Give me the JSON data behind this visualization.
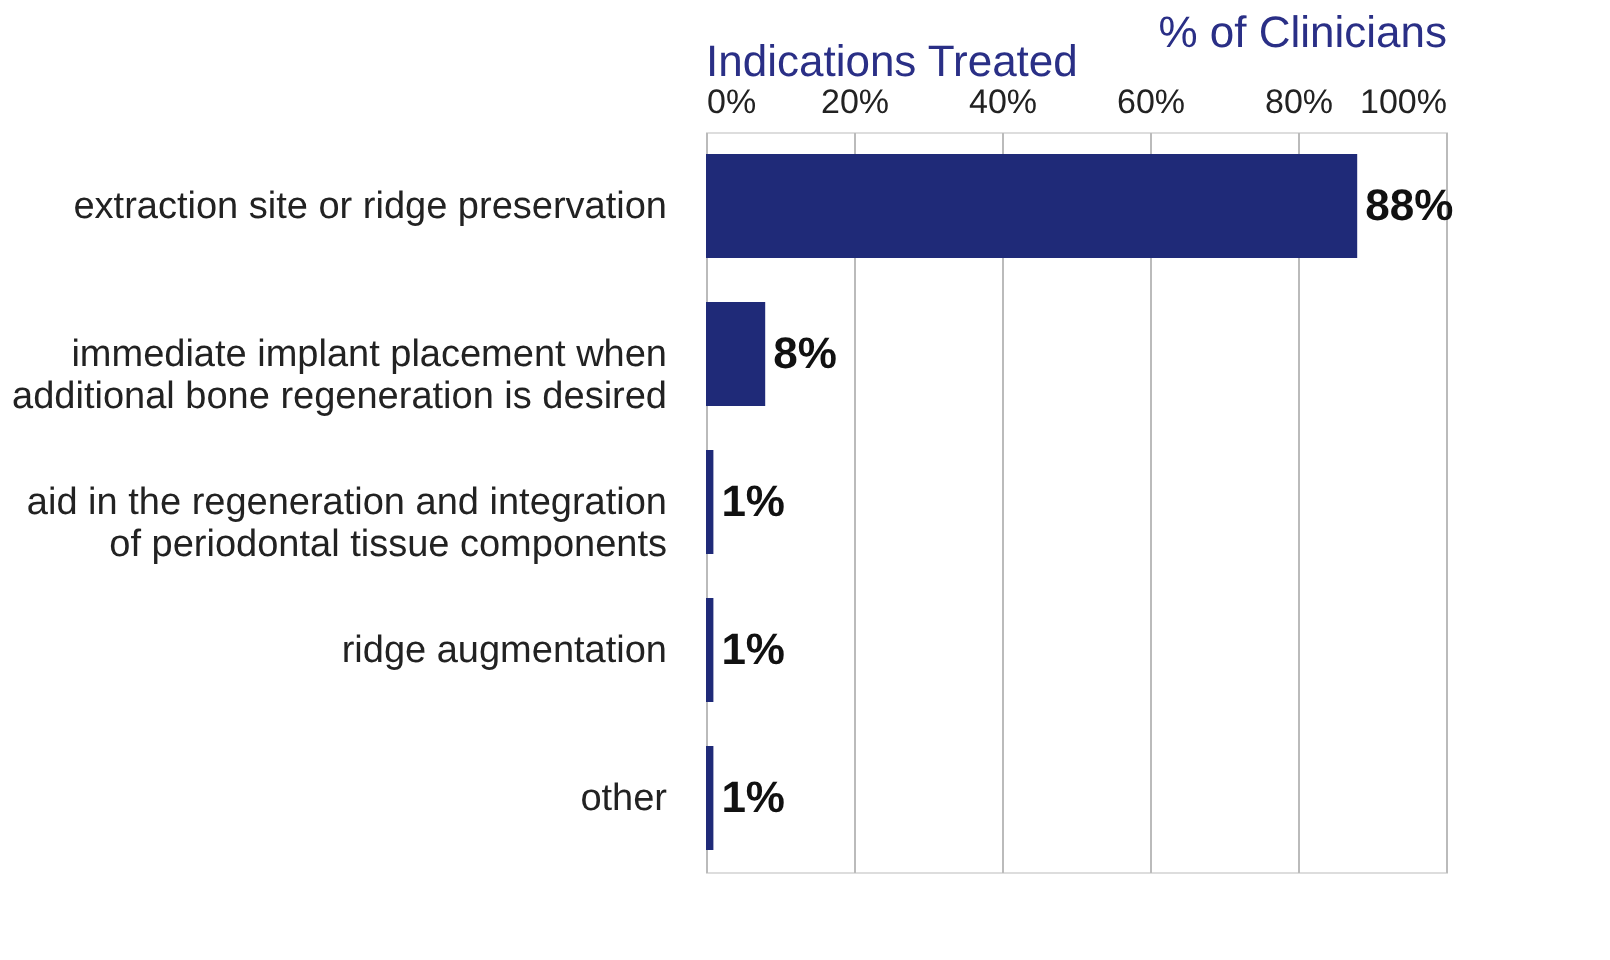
{
  "chart_data": {
    "type": "bar",
    "orientation": "horizontal",
    "title": "Indications Treated",
    "xlabel": "% of Clinicians",
    "categories": [
      "extraction site or ridge preservation",
      "immediate implant placement when\nadditional bone regeneration is desired",
      "aid in the regeneration and integration\nof periodontal tissue components",
      "ridge augmentation",
      "other"
    ],
    "values": [
      88,
      8,
      1,
      1,
      1
    ],
    "value_labels": [
      "88%",
      "8%",
      "1%",
      "1%",
      "1%"
    ],
    "color": "#1f2a78",
    "xlim": [
      0,
      100
    ],
    "xticks": [
      {
        "value": 0,
        "label": "0%"
      },
      {
        "value": 20,
        "label": "20%"
      },
      {
        "value": 40,
        "label": "40%"
      },
      {
        "value": 60,
        "label": "60%"
      },
      {
        "value": 80,
        "label": "80%"
      },
      {
        "value": 100,
        "label": "100%"
      }
    ],
    "grid": "x"
  }
}
